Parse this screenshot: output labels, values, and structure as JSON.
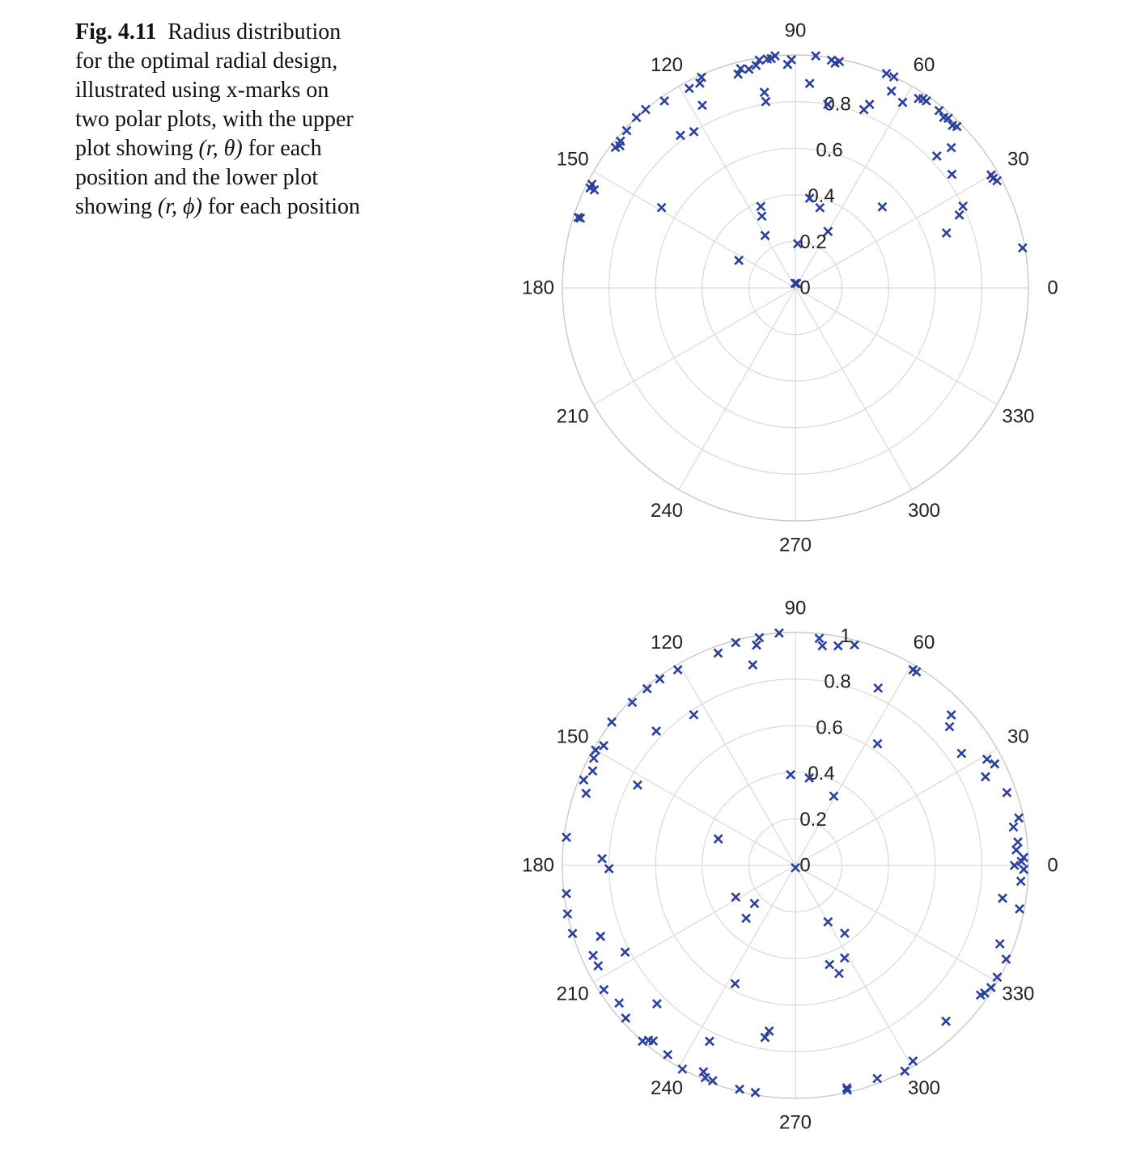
{
  "caption": {
    "figure_label": "Fig. 4.11",
    "text_before_theta": "Radius distribution for the optimal radial design, illustrated using x-marks on two polar plots, with the upper plot showing ",
    "theta_expr": "(r, θ)",
    "text_between": " for each position and the lower plot showing ",
    "phi_expr": "(r, ϕ)",
    "text_after": " for each position"
  },
  "colors": {
    "marker": "#2b3f9f",
    "grid": "#d9d9d9"
  },
  "chart_data": [
    {
      "type": "scatter",
      "coordinate_system": "polar",
      "marker": "x",
      "angular_ticks": [
        "0",
        "30",
        "60",
        "90",
        "120",
        "150",
        "180",
        "210",
        "240",
        "270",
        "300",
        "330"
      ],
      "radial_ticks": [
        "0",
        "0.2",
        "0.4",
        "0.6",
        "0.8"
      ],
      "rlim": [
        0,
        1
      ],
      "points": [
        {
          "theta": 10,
          "r": 0.99
        },
        {
          "theta": 28,
          "r": 0.98
        },
        {
          "theta": 29,
          "r": 0.97
        },
        {
          "theta": 30,
          "r": 0.97
        },
        {
          "theta": 26,
          "r": 0.8
        },
        {
          "theta": 36,
          "r": 0.83
        },
        {
          "theta": 43,
          "r": 0.83
        },
        {
          "theta": 42,
          "r": 0.9
        },
        {
          "theta": 45,
          "r": 0.98
        },
        {
          "theta": 46,
          "r": 0.97
        },
        {
          "theta": 48,
          "r": 0.98
        },
        {
          "theta": 49,
          "r": 0.97
        },
        {
          "theta": 51,
          "r": 0.98
        },
        {
          "theta": 55,
          "r": 0.98
        },
        {
          "theta": 56,
          "r": 0.98
        },
        {
          "theta": 57,
          "r": 0.97
        },
        {
          "theta": 60,
          "r": 0.92
        },
        {
          "theta": 64,
          "r": 0.94
        },
        {
          "theta": 65,
          "r": 1.0
        },
        {
          "theta": 67,
          "r": 1.0
        },
        {
          "theta": 68,
          "r": 0.85
        },
        {
          "theta": 69,
          "r": 0.82
        },
        {
          "theta": 79,
          "r": 0.99
        },
        {
          "theta": 80,
          "r": 0.98
        },
        {
          "theta": 81,
          "r": 0.99
        },
        {
          "theta": 85,
          "r": 1.0
        },
        {
          "theta": 80,
          "r": 0.8
        },
        {
          "theta": 86,
          "r": 0.88
        },
        {
          "theta": 91,
          "r": 0.98
        },
        {
          "theta": 92,
          "r": 0.96
        },
        {
          "theta": 95,
          "r": 1.0
        },
        {
          "theta": 96,
          "r": 0.99
        },
        {
          "theta": 97,
          "r": 0.99
        },
        {
          "theta": 99,
          "r": 0.99
        },
        {
          "theta": 100,
          "r": 0.97
        },
        {
          "theta": 102,
          "r": 0.96
        },
        {
          "theta": 104,
          "r": 0.97
        },
        {
          "theta": 105,
          "r": 0.95
        },
        {
          "theta": 99,
          "r": 0.81
        },
        {
          "theta": 99,
          "r": 0.85
        },
        {
          "theta": 114,
          "r": 0.99
        },
        {
          "theta": 115,
          "r": 0.97
        },
        {
          "theta": 117,
          "r": 0.88
        },
        {
          "theta": 118,
          "r": 0.97
        },
        {
          "theta": 123,
          "r": 0.8
        },
        {
          "theta": 127,
          "r": 0.82
        },
        {
          "theta": 125,
          "r": 0.98
        },
        {
          "theta": 130,
          "r": 1.0
        },
        {
          "theta": 133,
          "r": 1.0
        },
        {
          "theta": 137,
          "r": 0.99
        },
        {
          "theta": 140,
          "r": 0.98
        },
        {
          "theta": 141,
          "r": 0.97
        },
        {
          "theta": 142,
          "r": 0.98
        },
        {
          "theta": 149,
          "r": 0.67
        },
        {
          "theta": 153,
          "r": 0.98
        },
        {
          "theta": 154,
          "r": 0.98
        },
        {
          "theta": 154,
          "r": 0.96
        },
        {
          "theta": 162,
          "r": 0.98
        },
        {
          "theta": 162,
          "r": 0.97
        },
        {
          "theta": 154,
          "r": 0.27
        },
        {
          "theta": 113,
          "r": 0.38
        },
        {
          "theta": 115,
          "r": 0.34
        },
        {
          "theta": 120,
          "r": 0.26
        },
        {
          "theta": 81,
          "r": 0.39
        },
        {
          "theta": 73,
          "r": 0.36
        },
        {
          "theta": 60,
          "r": 0.28
        },
        {
          "theta": 43,
          "r": 0.51
        },
        {
          "theta": 24,
          "r": 0.77
        },
        {
          "theta": 20,
          "r": 0.69
        },
        {
          "theta": 87,
          "r": 0.19
        },
        {
          "theta": 75,
          "r": 0.02
        },
        {
          "theta": 95,
          "r": 0.02
        }
      ]
    },
    {
      "type": "scatter",
      "coordinate_system": "polar",
      "marker": "x",
      "angular_ticks": [
        "0",
        "30",
        "60",
        "90",
        "120",
        "150",
        "180",
        "210",
        "240",
        "270",
        "300",
        "330"
      ],
      "radial_ticks": [
        "0",
        "0.2",
        "0.4",
        "0.6",
        "0.8",
        "1"
      ],
      "rlim": [
        0,
        1
      ],
      "points": [
        {
          "theta": 0,
          "r": 0.94
        },
        {
          "theta": -1,
          "r": 0.98
        },
        {
          "theta": 2,
          "r": 0.98
        },
        {
          "theta": 4,
          "r": 0.95
        },
        {
          "theta": 6,
          "r": 0.96
        },
        {
          "theta": 10,
          "r": 0.95
        },
        {
          "theta": 12,
          "r": 0.98
        },
        {
          "theta": 19,
          "r": 0.96
        },
        {
          "theta": 25,
          "r": 0.9
        },
        {
          "theta": 27,
          "r": 0.96
        },
        {
          "theta": 29,
          "r": 0.94
        },
        {
          "theta": 34,
          "r": 0.86
        },
        {
          "theta": 42,
          "r": 0.89
        },
        {
          "theta": 44,
          "r": 0.93
        },
        {
          "theta": 58,
          "r": 0.98
        },
        {
          "theta": 59,
          "r": 0.98
        },
        {
          "theta": 56,
          "r": 0.63
        },
        {
          "theta": 65,
          "r": 0.84
        },
        {
          "theta": 75,
          "r": 0.98
        },
        {
          "theta": 79,
          "r": 0.96
        },
        {
          "theta": 84,
          "r": 0.98
        },
        {
          "theta": 83,
          "r": 0.95
        },
        {
          "theta": 61,
          "r": 0.34
        },
        {
          "theta": 81,
          "r": 0.38
        },
        {
          "theta": 93,
          "r": 0.39
        },
        {
          "theta": 94,
          "r": 1.0
        },
        {
          "theta": 100,
          "r": 0.96
        },
        {
          "theta": 99,
          "r": 0.99
        },
        {
          "theta": 102,
          "r": 0.88
        },
        {
          "theta": 105,
          "r": 0.99
        },
        {
          "theta": 110,
          "r": 0.97
        },
        {
          "theta": 121,
          "r": 0.98
        },
        {
          "theta": 124,
          "r": 0.78
        },
        {
          "theta": 126,
          "r": 0.99
        },
        {
          "theta": 130,
          "r": 0.99
        },
        {
          "theta": 135,
          "r": 0.99
        },
        {
          "theta": 136,
          "r": 0.83
        },
        {
          "theta": 142,
          "r": 1.0
        },
        {
          "theta": 148,
          "r": 0.97
        },
        {
          "theta": 150,
          "r": 0.99
        },
        {
          "theta": 152,
          "r": 0.98
        },
        {
          "theta": 155,
          "r": 0.96
        },
        {
          "theta": 158,
          "r": 0.98
        },
        {
          "theta": 161,
          "r": 0.95
        },
        {
          "theta": 153,
          "r": 0.76
        },
        {
          "theta": 161,
          "r": 0.35
        },
        {
          "theta": 173,
          "r": 0.99
        },
        {
          "theta": 178,
          "r": 0.83
        },
        {
          "theta": 181,
          "r": 0.8
        },
        {
          "theta": 187,
          "r": 0.99
        },
        {
          "theta": 192,
          "r": 1.0
        },
        {
          "theta": 197,
          "r": 1.0
        },
        {
          "theta": 200,
          "r": 0.89
        },
        {
          "theta": 204,
          "r": 0.95
        },
        {
          "theta": 207,
          "r": 0.95
        },
        {
          "theta": 213,
          "r": 0.98
        },
        {
          "theta": 218,
          "r": 0.96
        },
        {
          "theta": 222,
          "r": 0.98
        },
        {
          "theta": 229,
          "r": 1.0
        },
        {
          "theta": 230,
          "r": 0.98
        },
        {
          "theta": 231,
          "r": 0.97
        },
        {
          "theta": 236,
          "r": 0.98
        },
        {
          "theta": 241,
          "r": 1.0
        },
        {
          "theta": 247,
          "r": 0.99
        },
        {
          "theta": 249,
          "r": 0.99
        },
        {
          "theta": 246,
          "r": 0.97
        },
        {
          "theta": 256,
          "r": 0.99
        },
        {
          "theta": 260,
          "r": 0.99
        },
        {
          "theta": 283,
          "r": 0.99
        },
        {
          "theta": 283,
          "r": 0.98
        },
        {
          "theta": 291,
          "r": 0.98
        },
        {
          "theta": 298,
          "r": 1.0
        },
        {
          "theta": 301,
          "r": 0.98
        },
        {
          "theta": 314,
          "r": 0.93
        },
        {
          "theta": 328,
          "r": 0.99
        },
        {
          "theta": 326,
          "r": 0.98
        },
        {
          "theta": 331,
          "r": 0.99
        },
        {
          "theta": 336,
          "r": 0.99
        },
        {
          "theta": 339,
          "r": 0.94
        },
        {
          "theta": 349,
          "r": 0.98
        },
        {
          "theta": 351,
          "r": 0.9
        },
        {
          "theta": 356,
          "r": 0.97
        },
        {
          "theta": 1,
          "r": 0.97
        },
        {
          "theta": 325,
          "r": 0.97
        },
        {
          "theta": 223,
          "r": 0.24
        },
        {
          "theta": 227,
          "r": 0.31
        },
        {
          "theta": 306,
          "r": 0.36
        },
        {
          "theta": 300,
          "r": 0.28
        },
        {
          "theta": 298,
          "r": 0.45
        },
        {
          "theta": 289,
          "r": 0.45
        },
        {
          "theta": 260,
          "r": 0.75
        },
        {
          "theta": 292,
          "r": 0.5
        },
        {
          "theta": 244,
          "r": 0.84
        },
        {
          "theta": 225,
          "r": 0.84
        },
        {
          "theta": 207,
          "r": 0.82
        },
        {
          "theta": 243,
          "r": 0.57
        },
        {
          "theta": 261,
          "r": 0.72
        },
        {
          "theta": 208,
          "r": 0.29
        },
        {
          "theta": 270,
          "r": 0.01
        }
      ]
    }
  ]
}
